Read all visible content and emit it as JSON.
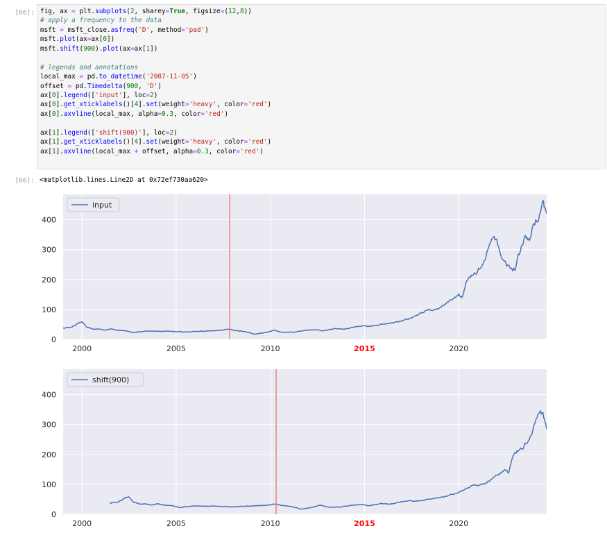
{
  "cell": {
    "input_prompt": "[66]:",
    "output_prompt": "[66]:",
    "code_lines": [
      [
        {
          "t": "fig, ax "
        },
        {
          "t": "=",
          "c": "op"
        },
        {
          "t": " plt"
        },
        {
          "t": "."
        },
        {
          "t": "subplots",
          "c": "fn"
        },
        {
          "t": "("
        },
        {
          "t": "2",
          "c": "num"
        },
        {
          "t": ", sharey"
        },
        {
          "t": "=",
          "c": "op"
        },
        {
          "t": "True",
          "c": "kw"
        },
        {
          "t": ", figsize"
        },
        {
          "t": "=",
          "c": "op"
        },
        {
          "t": "("
        },
        {
          "t": "12",
          "c": "num"
        },
        {
          "t": ","
        },
        {
          "t": "8",
          "c": "num"
        },
        {
          "t": "))"
        }
      ],
      [
        {
          "t": "# apply a frequency to the data",
          "c": "com"
        }
      ],
      [
        {
          "t": "msft "
        },
        {
          "t": "=",
          "c": "op"
        },
        {
          "t": " msft_close"
        },
        {
          "t": "."
        },
        {
          "t": "asfreq",
          "c": "fn"
        },
        {
          "t": "("
        },
        {
          "t": "'D'",
          "c": "str"
        },
        {
          "t": ", method"
        },
        {
          "t": "=",
          "c": "op"
        },
        {
          "t": "'pad'",
          "c": "str"
        },
        {
          "t": ")"
        }
      ],
      [
        {
          "t": "msft"
        },
        {
          "t": "."
        },
        {
          "t": "plot",
          "c": "fn"
        },
        {
          "t": "(ax"
        },
        {
          "t": "=",
          "c": "op"
        },
        {
          "t": "ax["
        },
        {
          "t": "0",
          "c": "num"
        },
        {
          "t": "])"
        }
      ],
      [
        {
          "t": "msft"
        },
        {
          "t": "."
        },
        {
          "t": "shift",
          "c": "fn"
        },
        {
          "t": "("
        },
        {
          "t": "900",
          "c": "num"
        },
        {
          "t": ")"
        },
        {
          "t": "."
        },
        {
          "t": "plot",
          "c": "fn"
        },
        {
          "t": "(ax"
        },
        {
          "t": "=",
          "c": "op"
        },
        {
          "t": "ax["
        },
        {
          "t": "1",
          "c": "num"
        },
        {
          "t": "])"
        }
      ],
      [],
      [
        {
          "t": "# legends and annotations",
          "c": "com"
        }
      ],
      [
        {
          "t": "local_max "
        },
        {
          "t": "=",
          "c": "op"
        },
        {
          "t": " pd"
        },
        {
          "t": "."
        },
        {
          "t": "to_datetime",
          "c": "fn"
        },
        {
          "t": "("
        },
        {
          "t": "'2007-11-05'",
          "c": "str"
        },
        {
          "t": ")"
        }
      ],
      [
        {
          "t": "offset "
        },
        {
          "t": "=",
          "c": "op"
        },
        {
          "t": " pd"
        },
        {
          "t": "."
        },
        {
          "t": "Timedelta",
          "c": "fn"
        },
        {
          "t": "("
        },
        {
          "t": "900",
          "c": "num"
        },
        {
          "t": ", "
        },
        {
          "t": "'D'",
          "c": "str"
        },
        {
          "t": ")"
        }
      ],
      [
        {
          "t": "ax["
        },
        {
          "t": "0",
          "c": "num"
        },
        {
          "t": "]"
        },
        {
          "t": "."
        },
        {
          "t": "legend",
          "c": "fn"
        },
        {
          "t": "(["
        },
        {
          "t": "'input'",
          "c": "str"
        },
        {
          "t": "], loc"
        },
        {
          "t": "=",
          "c": "op"
        },
        {
          "t": "2",
          "c": "num"
        },
        {
          "t": ")"
        }
      ],
      [
        {
          "t": "ax["
        },
        {
          "t": "0",
          "c": "num"
        },
        {
          "t": "]"
        },
        {
          "t": "."
        },
        {
          "t": "get_xticklabels",
          "c": "fn"
        },
        {
          "t": "()["
        },
        {
          "t": "4",
          "c": "num"
        },
        {
          "t": "]"
        },
        {
          "t": "."
        },
        {
          "t": "set",
          "c": "fn"
        },
        {
          "t": "(weight"
        },
        {
          "t": "=",
          "c": "op"
        },
        {
          "t": "'heavy'",
          "c": "str"
        },
        {
          "t": ", color"
        },
        {
          "t": "=",
          "c": "op"
        },
        {
          "t": "'red'",
          "c": "str"
        },
        {
          "t": ")"
        }
      ],
      [
        {
          "t": "ax["
        },
        {
          "t": "0",
          "c": "num"
        },
        {
          "t": "]"
        },
        {
          "t": "."
        },
        {
          "t": "axvline",
          "c": "fn"
        },
        {
          "t": "(local_max, alpha"
        },
        {
          "t": "=",
          "c": "op"
        },
        {
          "t": "0.3",
          "c": "num"
        },
        {
          "t": ", color"
        },
        {
          "t": "=",
          "c": "op"
        },
        {
          "t": "'red'",
          "c": "str"
        },
        {
          "t": ")"
        }
      ],
      [],
      [
        {
          "t": "ax["
        },
        {
          "t": "1",
          "c": "num"
        },
        {
          "t": "]"
        },
        {
          "t": "."
        },
        {
          "t": "legend",
          "c": "fn"
        },
        {
          "t": "(["
        },
        {
          "t": "'shift(900)'",
          "c": "str"
        },
        {
          "t": "], loc"
        },
        {
          "t": "=",
          "c": "op"
        },
        {
          "t": "2",
          "c": "num"
        },
        {
          "t": ")"
        }
      ],
      [
        {
          "t": "ax["
        },
        {
          "t": "1",
          "c": "num"
        },
        {
          "t": "]"
        },
        {
          "t": "."
        },
        {
          "t": "get_xticklabels",
          "c": "fn"
        },
        {
          "t": "()["
        },
        {
          "t": "4",
          "c": "num"
        },
        {
          "t": "]"
        },
        {
          "t": "."
        },
        {
          "t": "set",
          "c": "fn"
        },
        {
          "t": "(weight"
        },
        {
          "t": "=",
          "c": "op"
        },
        {
          "t": "'heavy'",
          "c": "str"
        },
        {
          "t": ", color"
        },
        {
          "t": "=",
          "c": "op"
        },
        {
          "t": "'red'",
          "c": "str"
        },
        {
          "t": ")"
        }
      ],
      [
        {
          "t": "ax["
        },
        {
          "t": "1",
          "c": "num"
        },
        {
          "t": "]"
        },
        {
          "t": "."
        },
        {
          "t": "axvline",
          "c": "fn"
        },
        {
          "t": "(local_max "
        },
        {
          "t": "+",
          "c": "op"
        },
        {
          "t": " offset, alpha"
        },
        {
          "t": "=",
          "c": "op"
        },
        {
          "t": "0.3",
          "c": "num"
        },
        {
          "t": ", color"
        },
        {
          "t": "=",
          "c": "op"
        },
        {
          "t": "'red'",
          "c": "str"
        },
        {
          "t": ")"
        }
      ]
    ],
    "output_text": "<matplotlib.lines.Line2D at 0x72ef730aa620>"
  },
  "colors": {
    "axes_bg": "#eaeaf2",
    "grid": "#ffffff",
    "line": "#4c72b0",
    "vline": "#e8828a",
    "highlight_tick": "#ff0000"
  },
  "chart_data": [
    {
      "type": "line",
      "series": [
        {
          "name": "input"
        }
      ],
      "legend_position": "top-left",
      "x_ticks": [
        "2000",
        "2005",
        "2010",
        "2015",
        "2020"
      ],
      "highlighted_tick": "2015",
      "y_ticks": [
        "0",
        "100",
        "200",
        "300",
        "400"
      ],
      "xlim": [
        "1999-01-01",
        "2024-09-01"
      ],
      "ylim": [
        0,
        485
      ],
      "grid": true,
      "vline": "2007-11-05",
      "points": [
        [
          "1999-01-01",
          38
        ],
        [
          "1999-07-01",
          41
        ],
        [
          "2000-01-01",
          55
        ],
        [
          "2000-04-01",
          42
        ],
        [
          "2000-09-01",
          35
        ],
        [
          "2001-03-01",
          32
        ],
        [
          "2001-09-01",
          34
        ],
        [
          "2002-04-01",
          27
        ],
        [
          "2002-10-01",
          24
        ],
        [
          "2003-06-01",
          26
        ],
        [
          "2004-01-01",
          27
        ],
        [
          "2004-06-01",
          28
        ],
        [
          "2005-01-01",
          27
        ],
        [
          "2005-06-01",
          25
        ],
        [
          "2006-01-01",
          27
        ],
        [
          "2006-07-01",
          26
        ],
        [
          "2007-01-01",
          29
        ],
        [
          "2007-06-01",
          31
        ],
        [
          "2007-11-01",
          36
        ],
        [
          "2008-05-01",
          29
        ],
        [
          "2008-11-01",
          21
        ],
        [
          "2009-03-01",
          17
        ],
        [
          "2009-09-01",
          25
        ],
        [
          "2010-04-01",
          30
        ],
        [
          "2010-09-01",
          24
        ],
        [
          "2011-05-01",
          25
        ],
        [
          "2012-03-01",
          31
        ],
        [
          "2012-10-01",
          28
        ],
        [
          "2013-06-01",
          34
        ],
        [
          "2014-01-01",
          37
        ],
        [
          "2014-09-01",
          45
        ],
        [
          "2015-06-01",
          44
        ],
        [
          "2016-01-01",
          51
        ],
        [
          "2016-07-01",
          55
        ],
        [
          "2017-01-01",
          63
        ],
        [
          "2017-07-01",
          72
        ],
        [
          "2018-01-01",
          89
        ],
        [
          "2018-06-01",
          99
        ],
        [
          "2018-10-01",
          107
        ],
        [
          "2018-12-01",
          100
        ],
        [
          "2019-04-01",
          120
        ],
        [
          "2019-10-01",
          140
        ],
        [
          "2020-01-01",
          158
        ],
        [
          "2020-03-01",
          145
        ],
        [
          "2020-06-01",
          195
        ],
        [
          "2020-09-01",
          208
        ],
        [
          "2021-01-01",
          225
        ],
        [
          "2021-06-01",
          265
        ],
        [
          "2021-11-01",
          330
        ],
        [
          "2022-03-01",
          295
        ],
        [
          "2022-06-01",
          255
        ],
        [
          "2022-11-01",
          235
        ],
        [
          "2023-01-01",
          240
        ],
        [
          "2023-04-01",
          285
        ],
        [
          "2023-07-01",
          335
        ],
        [
          "2023-10-01",
          330
        ],
        [
          "2024-01-01",
          380
        ],
        [
          "2024-04-01",
          420
        ],
        [
          "2024-06-01",
          445
        ],
        [
          "2024-07-01",
          460
        ],
        [
          "2024-09-01",
          420
        ]
      ]
    },
    {
      "type": "line",
      "series": [
        {
          "name": "shift(900)"
        }
      ],
      "legend_position": "top-left",
      "x_ticks": [
        "2000",
        "2005",
        "2010",
        "2015",
        "2020"
      ],
      "highlighted_tick": "2015",
      "y_ticks": [
        "0",
        "100",
        "200",
        "300",
        "400"
      ],
      "xlim": [
        "1999-01-01",
        "2024-09-01"
      ],
      "ylim": [
        0,
        485
      ],
      "grid": true,
      "vline": "2010-04-23",
      "points": [
        [
          "2001-06-20",
          38
        ],
        [
          "2001-12-20",
          41
        ],
        [
          "2002-06-20",
          55
        ],
        [
          "2002-09-20",
          42
        ],
        [
          "2003-02-20",
          35
        ],
        [
          "2003-08-20",
          32
        ],
        [
          "2004-02-20",
          34
        ],
        [
          "2004-09-20",
          27
        ],
        [
          "2005-03-20",
          24
        ],
        [
          "2005-11-20",
          26
        ],
        [
          "2006-06-20",
          27
        ],
        [
          "2006-11-20",
          28
        ],
        [
          "2007-06-20",
          27
        ],
        [
          "2007-11-20",
          25
        ],
        [
          "2008-06-20",
          27
        ],
        [
          "2008-12-20",
          26
        ],
        [
          "2009-06-20",
          29
        ],
        [
          "2009-11-20",
          31
        ],
        [
          "2010-04-20",
          36
        ],
        [
          "2010-10-20",
          29
        ],
        [
          "2011-04-20",
          21
        ],
        [
          "2011-08-20",
          17
        ],
        [
          "2012-02-20",
          25
        ],
        [
          "2012-09-20",
          30
        ],
        [
          "2013-02-20",
          24
        ],
        [
          "2013-10-20",
          25
        ],
        [
          "2014-08-20",
          31
        ],
        [
          "2015-03-20",
          28
        ],
        [
          "2015-11-20",
          34
        ],
        [
          "2016-06-20",
          37
        ],
        [
          "2017-02-20",
          45
        ],
        [
          "2017-11-20",
          44
        ],
        [
          "2018-06-20",
          51
        ],
        [
          "2018-12-20",
          55
        ],
        [
          "2019-06-20",
          63
        ],
        [
          "2019-12-20",
          72
        ],
        [
          "2020-06-20",
          89
        ],
        [
          "2020-11-20",
          99
        ],
        [
          "2021-03-20",
          107
        ],
        [
          "2021-05-20",
          100
        ],
        [
          "2021-09-20",
          120
        ],
        [
          "2022-03-20",
          140
        ],
        [
          "2022-06-20",
          158
        ],
        [
          "2022-08-20",
          145
        ],
        [
          "2022-11-20",
          195
        ],
        [
          "2023-02-20",
          208
        ],
        [
          "2023-06-20",
          225
        ],
        [
          "2023-11-20",
          265
        ],
        [
          "2024-04-20",
          330
        ],
        [
          "2024-08-20",
          300
        ],
        [
          "2024-09-01",
          285
        ]
      ]
    }
  ]
}
